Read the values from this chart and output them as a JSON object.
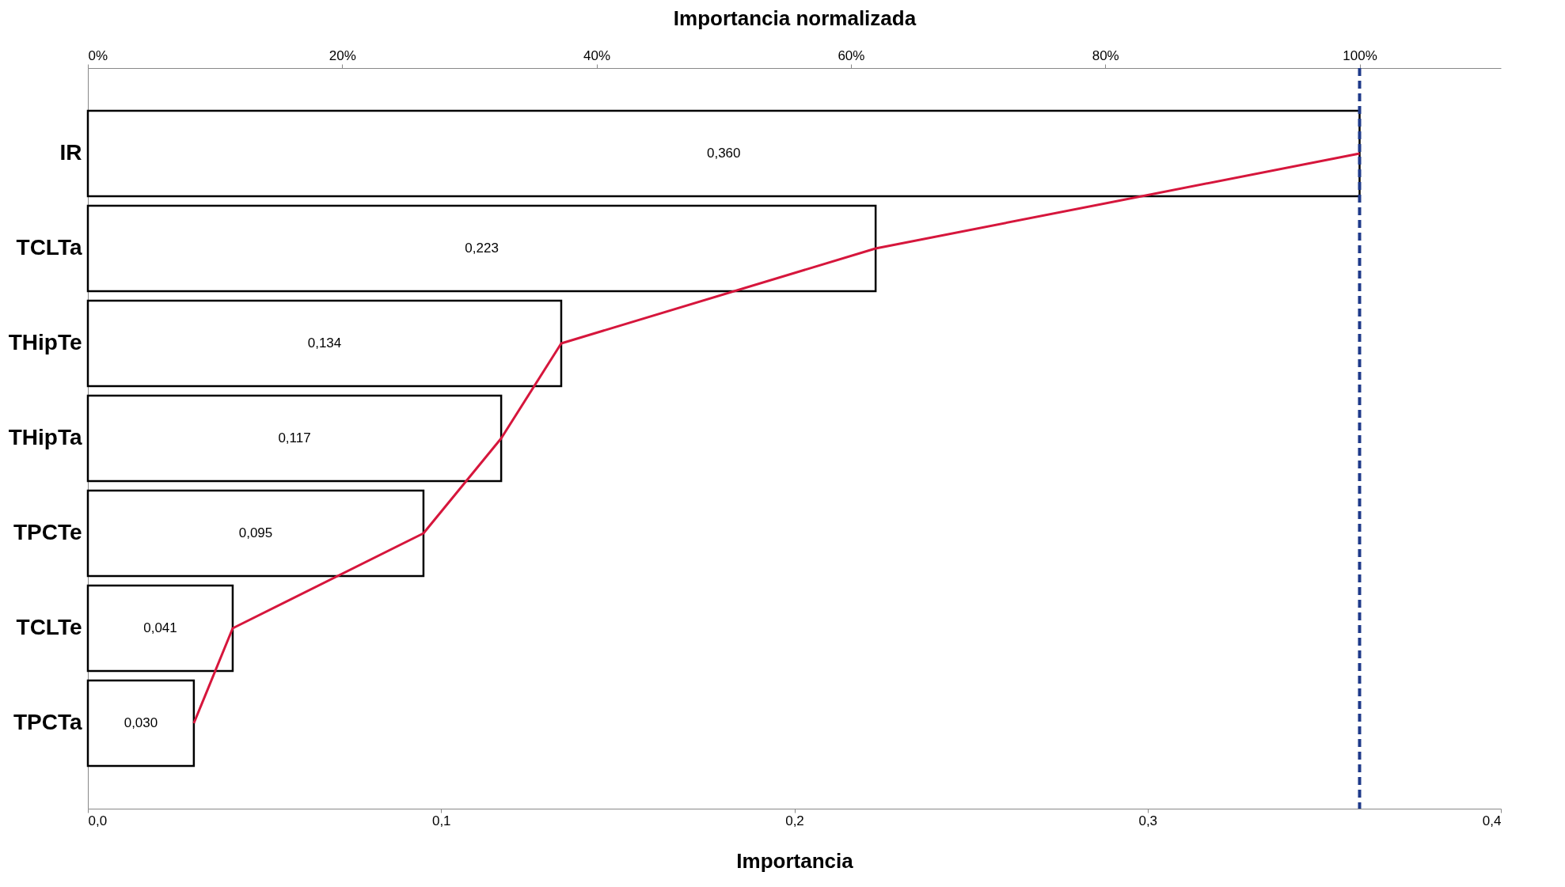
{
  "chart_data": {
    "type": "bar",
    "orientation": "horizontal",
    "xlabel": "Importancia",
    "x2label": "Importancia normalizada",
    "categories": [
      "IR",
      "TCLTa",
      "THipTe",
      "THipTa",
      "TPCTe",
      "TCLTe",
      "TPCTa"
    ],
    "series": [
      {
        "color": "#ffffff",
        "values": [
          0.36,
          0.223,
          0.134,
          0.117,
          0.095,
          0.041,
          0.03
        ],
        "value_labels": [
          "0,360",
          "0,223",
          "0,134",
          "0,117",
          "0,095",
          "0,041",
          "0,030"
        ]
      },
      {
        "type": "line",
        "color": "#d6163c",
        "values": [
          0.36,
          0.223,
          0.134,
          0.117,
          0.095,
          0.041,
          0.03
        ]
      }
    ],
    "xlim": [
      0,
      0.4
    ],
    "xticks": [
      {
        "value": 0,
        "label": "0,0"
      },
      {
        "value": 0.1,
        "label": "0,1"
      },
      {
        "value": 0.2,
        "label": "0,2"
      },
      {
        "value": 0.3,
        "label": "0,3"
      },
      {
        "value": 0.4,
        "label": "0,4"
      }
    ],
    "x2lim": [
      0,
      111.11
    ],
    "x2ticks": [
      {
        "value": 0,
        "label": "0%"
      },
      {
        "value": 20,
        "label": "20%"
      },
      {
        "value": 40,
        "label": "40%"
      },
      {
        "value": 60,
        "label": "60%"
      },
      {
        "value": 80,
        "label": "80%"
      },
      {
        "value": 100,
        "label": "100%"
      }
    ],
    "ref_lines": [
      {
        "axis": "x",
        "value": 0.36,
        "color": "#1f3a8a",
        "line_style": "dashed"
      }
    ],
    "grid": false
  }
}
